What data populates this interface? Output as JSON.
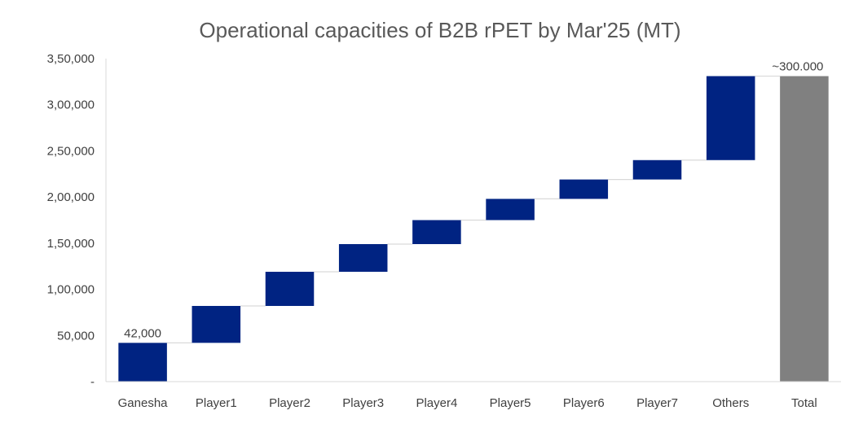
{
  "chart_data": {
    "type": "bar",
    "subtype": "waterfall",
    "title": "Operational capacities of B2B rPET by Mar'25 (MT)",
    "xlabel": "",
    "ylabel": "",
    "ylim": [
      0,
      350000
    ],
    "y_ticks": [
      0,
      50000,
      100000,
      150000,
      200000,
      250000,
      300000,
      350000
    ],
    "y_tick_labels": [
      "-",
      "50,000",
      "1,00,000",
      "1,50,000",
      "2,00,000",
      "2,50,000",
      "3,00,000",
      "3,50,000"
    ],
    "categories": [
      "Ganesha",
      "Player1",
      "Player2",
      "Player3",
      "Player4",
      "Player5",
      "Player6",
      "Player7",
      "Others",
      "Total"
    ],
    "values": [
      42000,
      40000,
      37000,
      30000,
      26000,
      23000,
      21000,
      21000,
      91000,
      331000
    ],
    "kinds": [
      "increase",
      "increase",
      "increase",
      "increase",
      "increase",
      "increase",
      "increase",
      "increase",
      "increase",
      "total"
    ],
    "data_labels": [
      "42,000",
      "",
      "",
      "",
      "",
      "",
      "",
      "",
      "",
      "~300.000"
    ],
    "grid": false,
    "legend": "none",
    "colors": {
      "increase": "#002382",
      "total": "#808080",
      "connector": "#d9d9d9",
      "axis": "#d9d9d9"
    }
  }
}
